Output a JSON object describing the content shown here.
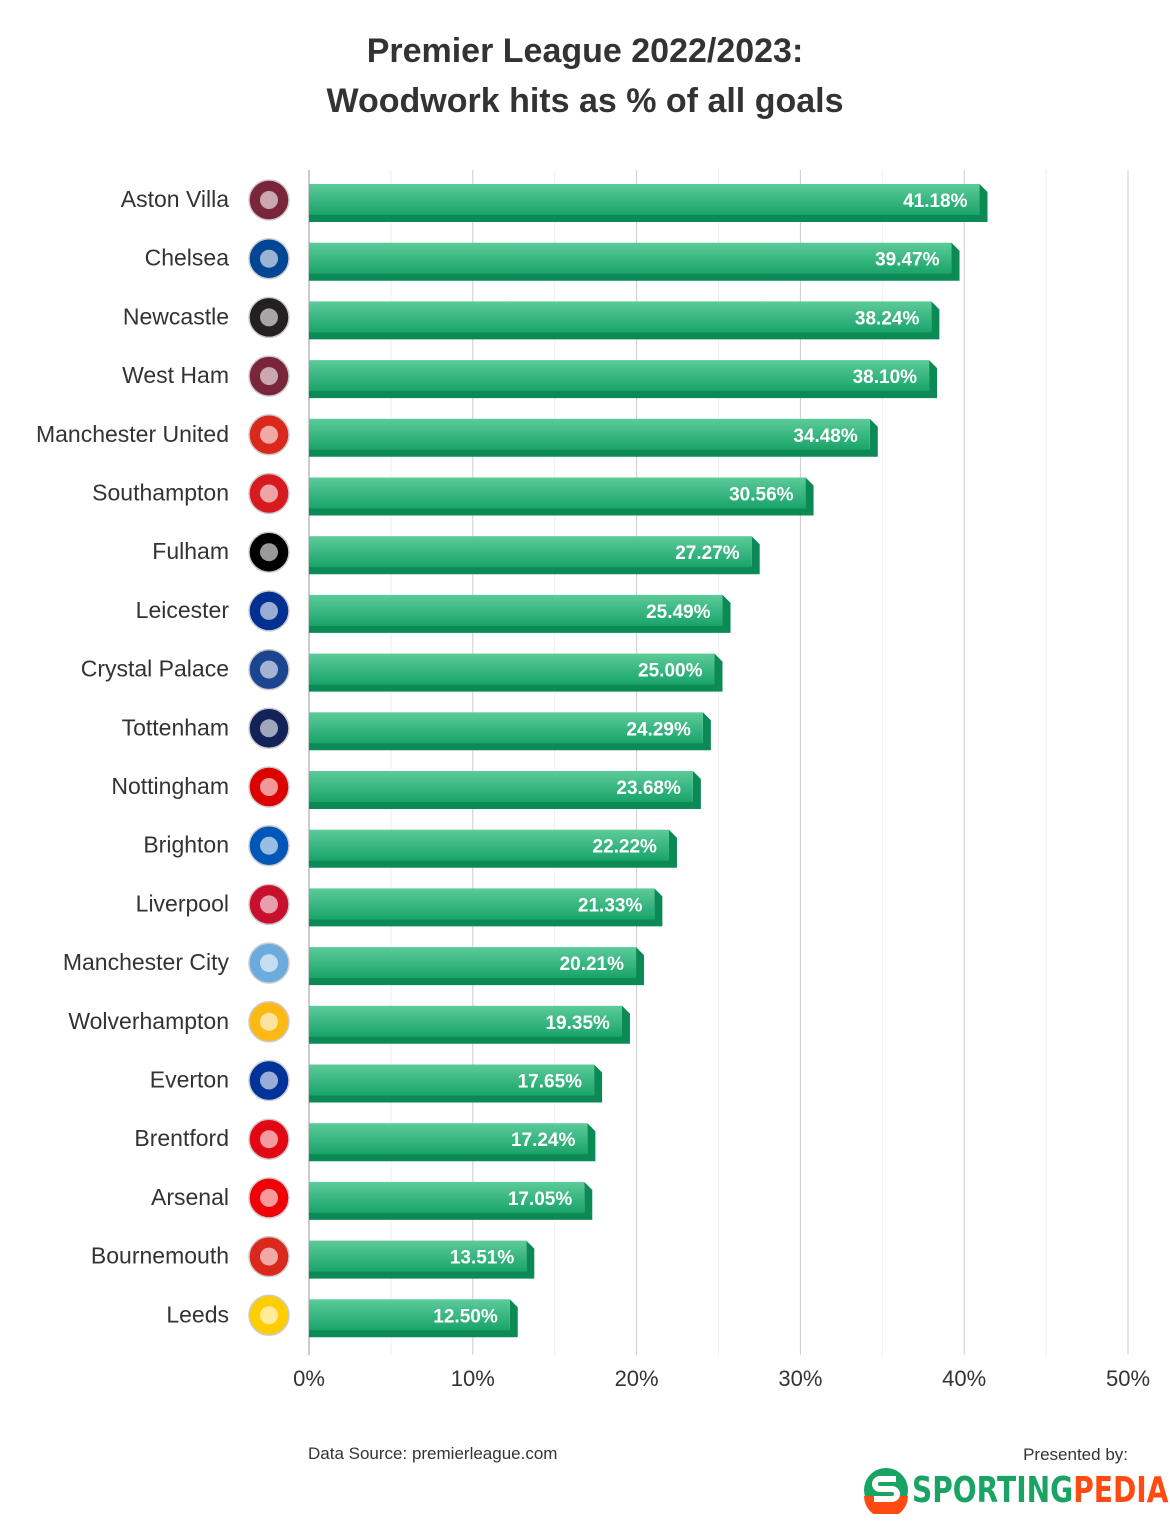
{
  "chart_data": {
    "type": "bar",
    "orientation": "horizontal",
    "title": [
      "Premier League 2022/2023:",
      "Woodwork hits as % of all goals"
    ],
    "categories": [
      "Aston Villa",
      "Chelsea",
      "Newcastle",
      "West Ham",
      "Manchester United",
      "Southampton",
      "Fulham",
      "Leicester",
      "Crystal Palace",
      "Tottenham",
      "Nottingham",
      "Brighton",
      "Liverpool",
      "Manchester City",
      "Wolverhampton",
      "Everton",
      "Brentford",
      "Arsenal",
      "Bournemouth",
      "Leeds"
    ],
    "values": [
      41.18,
      39.47,
      38.24,
      38.1,
      34.48,
      30.56,
      27.27,
      25.49,
      25.0,
      24.29,
      23.68,
      22.22,
      21.33,
      20.21,
      19.35,
      17.65,
      17.24,
      17.05,
      13.51,
      12.5
    ],
    "labels": [
      "41.18%",
      "39.47%",
      "38.24%",
      "38.10%",
      "34.48%",
      "30.56%",
      "27.27%",
      "25.49%",
      "25.00%",
      "24.29%",
      "23.68%",
      "22.22%",
      "21.33%",
      "20.21%",
      "19.35%",
      "17.65%",
      "17.24%",
      "17.05%",
      "13.51%",
      "12.50%"
    ],
    "team_colors": [
      "#7a263a",
      "#034694",
      "#241f20",
      "#7a263a",
      "#da291c",
      "#d71920",
      "#000000",
      "#003090",
      "#1b458f",
      "#132257",
      "#dd0000",
      "#0057b8",
      "#c8102e",
      "#6cabdd",
      "#fdb913",
      "#003399",
      "#e30613",
      "#ef0107",
      "#da291c",
      "#ffcd00"
    ],
    "xlim": [
      0,
      50
    ],
    "xticks": [
      "0%",
      "10%",
      "20%",
      "30%",
      "40%",
      "50%"
    ],
    "grid": true,
    "bar_color": "#20a86f"
  },
  "footer": {
    "source": "Data Source: premierleague.com",
    "presented": "Presented by:",
    "brand_a": "SPORTING",
    "brand_b": "PEDIA",
    "brand_a_color": "#1aa463",
    "brand_b_color": "#ff4a12"
  }
}
